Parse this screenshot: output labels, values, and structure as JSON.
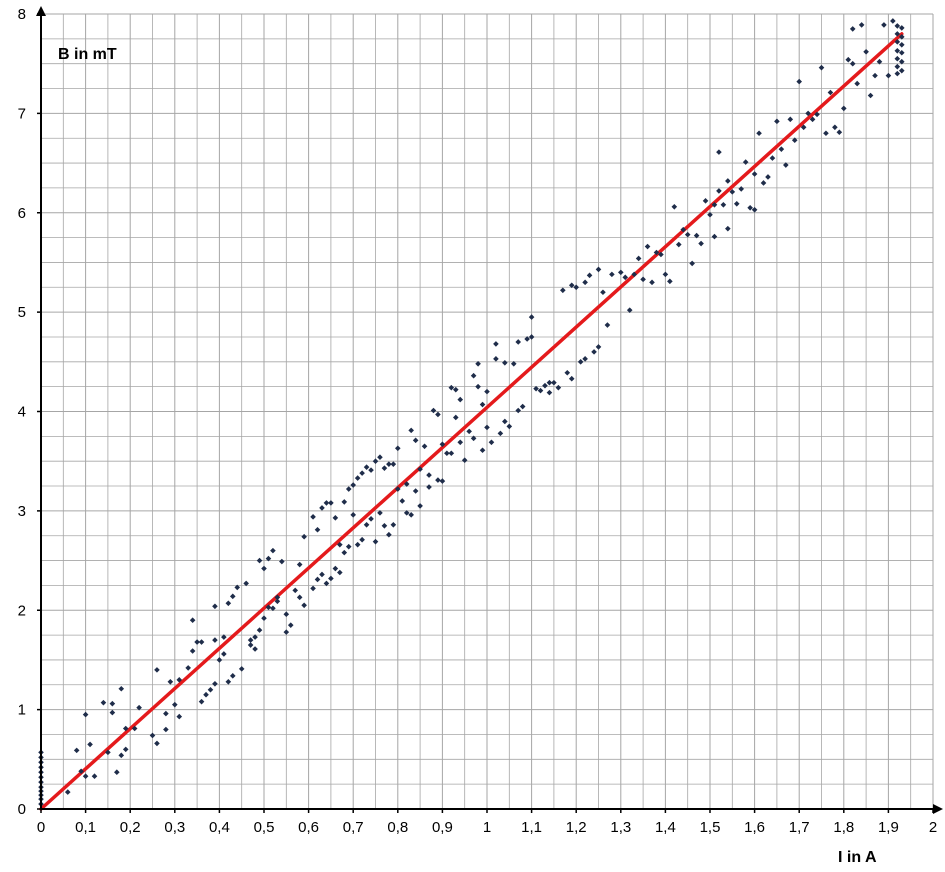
{
  "chart_data": {
    "type": "scatter",
    "title": "",
    "xlabel": "I in A",
    "ylabel": "B in mT",
    "xlim": [
      0,
      2
    ],
    "ylim": [
      0,
      8
    ],
    "grid": true,
    "minor_grid": true,
    "x_ticks": [
      "0",
      "0,1",
      "0,2",
      "0,3",
      "0,4",
      "0,5",
      "0,6",
      "0,7",
      "0,8",
      "0,9",
      "1",
      "1,1",
      "1,2",
      "1,3",
      "1,4",
      "1,5",
      "1,6",
      "1,7",
      "1,8",
      "1,9",
      "2"
    ],
    "y_ticks": [
      "0",
      "1",
      "2",
      "3",
      "4",
      "5",
      "6",
      "7",
      "8"
    ],
    "colors": {
      "points": "#1f2d4a",
      "fit_line": "#e41a1c",
      "grid": "#a6a6a6",
      "axis": "#000000"
    },
    "series": [
      {
        "type": "scatter",
        "points": [
          [
            0.0,
            0.05
          ],
          [
            0.0,
            0.1
          ],
          [
            0.0,
            0.14
          ],
          [
            0.0,
            0.18
          ],
          [
            0.0,
            0.22
          ],
          [
            0.0,
            0.27
          ],
          [
            0.0,
            0.32
          ],
          [
            0.0,
            0.37
          ],
          [
            0.0,
            0.42
          ],
          [
            0.0,
            0.47
          ],
          [
            0.0,
            0.52
          ],
          [
            0.0,
            0.57
          ],
          [
            0.06,
            0.17
          ],
          [
            0.08,
            0.59
          ],
          [
            0.09,
            0.38
          ],
          [
            0.1,
            0.33
          ],
          [
            0.1,
            0.95
          ],
          [
            0.11,
            0.65
          ],
          [
            0.12,
            0.33
          ],
          [
            0.14,
            1.07
          ],
          [
            0.15,
            0.57
          ],
          [
            0.16,
            0.97
          ],
          [
            0.16,
            1.06
          ],
          [
            0.17,
            0.37
          ],
          [
            0.18,
            1.21
          ],
          [
            0.18,
            0.54
          ],
          [
            0.19,
            0.6
          ],
          [
            0.19,
            0.81
          ],
          [
            0.21,
            0.81
          ],
          [
            0.22,
            1.02
          ],
          [
            0.25,
            0.74
          ],
          [
            0.26,
            0.66
          ],
          [
            0.26,
            1.4
          ],
          [
            0.28,
            0.8
          ],
          [
            0.28,
            0.96
          ],
          [
            0.29,
            1.28
          ],
          [
            0.3,
            1.05
          ],
          [
            0.31,
            1.3
          ],
          [
            0.31,
            0.93
          ],
          [
            0.33,
            1.42
          ],
          [
            0.34,
            1.59
          ],
          [
            0.34,
            1.9
          ],
          [
            0.35,
            1.68
          ],
          [
            0.36,
            1.08
          ],
          [
            0.36,
            1.68
          ],
          [
            0.37,
            1.15
          ],
          [
            0.38,
            1.2
          ],
          [
            0.39,
            1.26
          ],
          [
            0.39,
            1.7
          ],
          [
            0.39,
            2.04
          ],
          [
            0.4,
            1.5
          ],
          [
            0.41,
            1.73
          ],
          [
            0.41,
            1.56
          ],
          [
            0.42,
            1.28
          ],
          [
            0.42,
            2.07
          ],
          [
            0.43,
            2.14
          ],
          [
            0.43,
            1.34
          ],
          [
            0.44,
            2.23
          ],
          [
            0.45,
            1.41
          ],
          [
            0.46,
            2.27
          ],
          [
            0.47,
            1.65
          ],
          [
            0.47,
            1.7
          ],
          [
            0.48,
            1.61
          ],
          [
            0.48,
            1.73
          ],
          [
            0.49,
            1.8
          ],
          [
            0.49,
            2.5
          ],
          [
            0.5,
            2.42
          ],
          [
            0.5,
            1.92
          ],
          [
            0.51,
            2.03
          ],
          [
            0.51,
            2.52
          ],
          [
            0.52,
            2.02
          ],
          [
            0.52,
            2.6
          ],
          [
            0.53,
            2.09
          ],
          [
            0.53,
            2.13
          ],
          [
            0.54,
            2.49
          ],
          [
            0.55,
            1.78
          ],
          [
            0.55,
            1.96
          ],
          [
            0.56,
            1.85
          ],
          [
            0.57,
            2.2
          ],
          [
            0.58,
            2.46
          ],
          [
            0.58,
            2.13
          ],
          [
            0.59,
            2.74
          ],
          [
            0.59,
            2.05
          ],
          [
            0.61,
            2.22
          ],
          [
            0.61,
            2.94
          ],
          [
            0.62,
            2.31
          ],
          [
            0.62,
            2.81
          ],
          [
            0.63,
            2.36
          ],
          [
            0.63,
            3.03
          ],
          [
            0.64,
            2.27
          ],
          [
            0.64,
            3.08
          ],
          [
            0.65,
            2.32
          ],
          [
            0.65,
            3.08
          ],
          [
            0.66,
            2.42
          ],
          [
            0.66,
            2.93
          ],
          [
            0.67,
            2.38
          ],
          [
            0.67,
            2.66
          ],
          [
            0.68,
            3.09
          ],
          [
            0.68,
            2.58
          ],
          [
            0.69,
            2.64
          ],
          [
            0.69,
            3.22
          ],
          [
            0.7,
            2.96
          ],
          [
            0.7,
            3.26
          ],
          [
            0.71,
            2.66
          ],
          [
            0.71,
            3.33
          ],
          [
            0.72,
            2.71
          ],
          [
            0.72,
            3.38
          ],
          [
            0.73,
            2.86
          ],
          [
            0.73,
            3.44
          ],
          [
            0.74,
            2.92
          ],
          [
            0.74,
            3.41
          ],
          [
            0.75,
            3.5
          ],
          [
            0.75,
            2.69
          ],
          [
            0.76,
            3.54
          ],
          [
            0.76,
            2.98
          ],
          [
            0.77,
            2.85
          ],
          [
            0.77,
            3.43
          ],
          [
            0.78,
            3.47
          ],
          [
            0.78,
            2.76
          ],
          [
            0.79,
            3.47
          ],
          [
            0.79,
            2.86
          ],
          [
            0.8,
            3.22
          ],
          [
            0.8,
            3.63
          ],
          [
            0.81,
            3.1
          ],
          [
            0.82,
            2.98
          ],
          [
            0.82,
            3.27
          ],
          [
            0.83,
            2.96
          ],
          [
            0.83,
            3.81
          ],
          [
            0.84,
            3.71
          ],
          [
            0.84,
            3.2
          ],
          [
            0.85,
            3.05
          ],
          [
            0.85,
            3.42
          ],
          [
            0.86,
            3.65
          ],
          [
            0.87,
            3.24
          ],
          [
            0.87,
            3.36
          ],
          [
            0.88,
            4.01
          ],
          [
            0.89,
            3.97
          ],
          [
            0.89,
            3.31
          ],
          [
            0.9,
            3.3
          ],
          [
            0.9,
            3.67
          ],
          [
            0.91,
            3.58
          ],
          [
            0.92,
            4.24
          ],
          [
            0.92,
            3.58
          ],
          [
            0.93,
            4.22
          ],
          [
            0.93,
            3.94
          ],
          [
            0.94,
            3.69
          ],
          [
            0.94,
            4.12
          ],
          [
            0.95,
            3.51
          ],
          [
            0.96,
            3.8
          ],
          [
            0.97,
            4.36
          ],
          [
            0.97,
            3.73
          ],
          [
            0.98,
            4.48
          ],
          [
            0.98,
            4.25
          ],
          [
            0.99,
            3.61
          ],
          [
            0.99,
            4.07
          ],
          [
            1.0,
            4.2
          ],
          [
            1.0,
            3.84
          ],
          [
            1.01,
            3.69
          ],
          [
            1.02,
            4.53
          ],
          [
            1.02,
            4.68
          ],
          [
            1.03,
            3.78
          ],
          [
            1.04,
            4.49
          ],
          [
            1.04,
            3.9
          ],
          [
            1.05,
            3.85
          ],
          [
            1.06,
            4.48
          ],
          [
            1.07,
            4.7
          ],
          [
            1.07,
            4.01
          ],
          [
            1.08,
            4.05
          ],
          [
            1.09,
            4.73
          ],
          [
            1.1,
            4.95
          ],
          [
            1.1,
            4.75
          ],
          [
            1.11,
            4.23
          ],
          [
            1.12,
            4.21
          ],
          [
            1.13,
            4.26
          ],
          [
            1.14,
            4.29
          ],
          [
            1.14,
            4.19
          ],
          [
            1.15,
            4.29
          ],
          [
            1.16,
            4.24
          ],
          [
            1.17,
            5.22
          ],
          [
            1.18,
            4.39
          ],
          [
            1.19,
            4.33
          ],
          [
            1.19,
            5.27
          ],
          [
            1.2,
            5.25
          ],
          [
            1.21,
            4.5
          ],
          [
            1.22,
            5.3
          ],
          [
            1.22,
            4.53
          ],
          [
            1.23,
            5.37
          ],
          [
            1.24,
            4.6
          ],
          [
            1.25,
            4.65
          ],
          [
            1.25,
            5.43
          ],
          [
            1.26,
            5.2
          ],
          [
            1.27,
            4.87
          ],
          [
            1.28,
            5.38
          ],
          [
            1.3,
            5.4
          ],
          [
            1.31,
            5.35
          ],
          [
            1.32,
            5.02
          ],
          [
            1.33,
            5.38
          ],
          [
            1.34,
            5.54
          ],
          [
            1.35,
            5.33
          ],
          [
            1.36,
            5.66
          ],
          [
            1.37,
            5.3
          ],
          [
            1.38,
            5.6
          ],
          [
            1.39,
            5.58
          ],
          [
            1.4,
            5.38
          ],
          [
            1.41,
            5.31
          ],
          [
            1.42,
            6.06
          ],
          [
            1.43,
            5.68
          ],
          [
            1.44,
            5.83
          ],
          [
            1.45,
            5.78
          ],
          [
            1.46,
            5.49
          ],
          [
            1.47,
            5.77
          ],
          [
            1.48,
            5.69
          ],
          [
            1.49,
            6.12
          ],
          [
            1.5,
            5.98
          ],
          [
            1.51,
            6.08
          ],
          [
            1.51,
            5.76
          ],
          [
            1.52,
            6.22
          ],
          [
            1.52,
            6.61
          ],
          [
            1.53,
            6.08
          ],
          [
            1.54,
            5.84
          ],
          [
            1.54,
            6.32
          ],
          [
            1.55,
            6.21
          ],
          [
            1.56,
            6.09
          ],
          [
            1.57,
            6.24
          ],
          [
            1.58,
            6.51
          ],
          [
            1.59,
            6.05
          ],
          [
            1.6,
            6.39
          ],
          [
            1.6,
            6.03
          ],
          [
            1.61,
            6.8
          ],
          [
            1.62,
            6.3
          ],
          [
            1.63,
            6.36
          ],
          [
            1.64,
            6.55
          ],
          [
            1.65,
            6.92
          ],
          [
            1.66,
            6.64
          ],
          [
            1.67,
            6.48
          ],
          [
            1.68,
            6.94
          ],
          [
            1.69,
            6.73
          ],
          [
            1.7,
            7.32
          ],
          [
            1.71,
            6.86
          ],
          [
            1.72,
            7.0
          ],
          [
            1.73,
            6.94
          ],
          [
            1.74,
            6.99
          ],
          [
            1.75,
            7.46
          ],
          [
            1.76,
            6.8
          ],
          [
            1.77,
            7.21
          ],
          [
            1.78,
            6.86
          ],
          [
            1.79,
            6.81
          ],
          [
            1.8,
            7.05
          ],
          [
            1.81,
            7.54
          ],
          [
            1.82,
            7.5
          ],
          [
            1.82,
            7.85
          ],
          [
            1.83,
            7.3
          ],
          [
            1.84,
            7.89
          ],
          [
            1.85,
            7.62
          ],
          [
            1.86,
            7.18
          ],
          [
            1.87,
            7.38
          ],
          [
            1.88,
            7.52
          ],
          [
            1.89,
            7.89
          ],
          [
            1.9,
            7.38
          ],
          [
            1.91,
            7.93
          ],
          [
            1.92,
            7.4
          ],
          [
            1.92,
            7.47
          ],
          [
            1.92,
            7.55
          ],
          [
            1.92,
            7.63
          ],
          [
            1.92,
            7.72
          ],
          [
            1.92,
            7.8
          ],
          [
            1.92,
            7.88
          ],
          [
            1.93,
            7.43
          ],
          [
            1.93,
            7.52
          ],
          [
            1.93,
            7.61
          ],
          [
            1.93,
            7.69
          ],
          [
            1.93,
            7.77
          ],
          [
            1.93,
            7.86
          ]
        ]
      },
      {
        "type": "line",
        "points": [
          [
            0,
            0
          ],
          [
            1.93,
            7.8
          ]
        ]
      }
    ]
  }
}
